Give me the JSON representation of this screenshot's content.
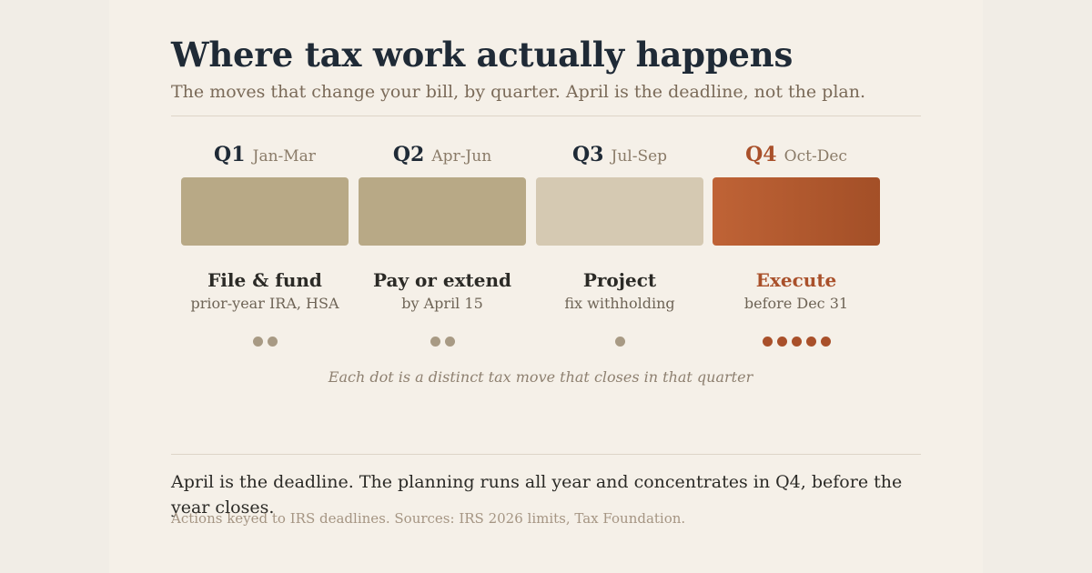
{
  "header": {
    "title": "Where tax work actually happens",
    "subtitle": "The moves that change your bill, by quarter. April is the deadline, not the plan."
  },
  "quarters": [
    {
      "code": "Q1",
      "range": "Jan-Mar",
      "action": "File & fund",
      "detail": "prior-year IRA, HSA",
      "moves": 2,
      "block_color": "#b8a986",
      "dot_color": "#a89a84",
      "accent": false
    },
    {
      "code": "Q2",
      "range": "Apr-Jun",
      "action": "Pay or extend",
      "detail": "by April 15",
      "moves": 2,
      "block_color": "#b8a986",
      "dot_color": "#a89a84",
      "accent": false
    },
    {
      "code": "Q3",
      "range": "Jul-Sep",
      "action": "Project",
      "detail": "fix withholding",
      "moves": 1,
      "block_color": "#d5c9b2",
      "dot_color": "#a89a84",
      "accent": false
    },
    {
      "code": "Q4",
      "range": "Oct-Dec",
      "action": "Execute",
      "detail": "before Dec 31",
      "moves": 5,
      "block_color": "#bf6336",
      "block_color_end": "#a34f27",
      "dot_color": "#a9502a",
      "accent": true
    }
  ],
  "legend_note": "Each dot is a distinct tax move that closes in that quarter",
  "takeaway": "April is the deadline. The planning runs all year and concentrates in Q4, before the year closes.",
  "source": "Actions keyed to IRS deadlines. Sources: IRS 2026 limits, Tax Foundation."
}
